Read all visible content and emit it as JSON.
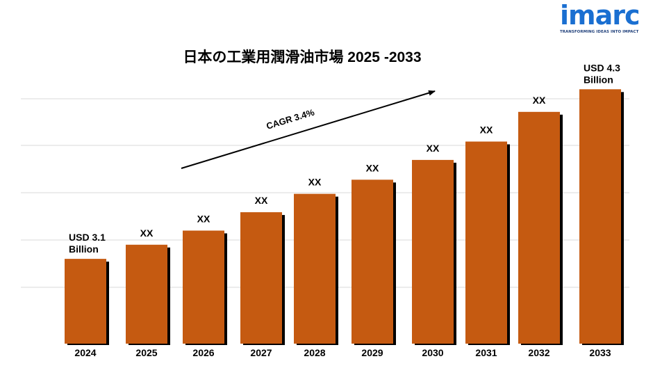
{
  "brand": {
    "logo_text": "imarc",
    "tagline": "TRANSFORMING IDEAS INTO IMPACT"
  },
  "colors": {
    "bar": "#c55a11",
    "bar_shadow": "#000000",
    "gridline": "#d9d9d9",
    "logo_blue": "#1a6fd1"
  },
  "chart_data": {
    "type": "bar",
    "title": "日本の工業用潤滑油市場 2025 -2033",
    "xlabel": "",
    "ylabel": "",
    "grid": true,
    "categories": [
      "2024",
      "2025",
      "2026",
      "2027",
      "2028",
      "2029",
      "2030",
      "2031",
      "2032",
      "2033"
    ],
    "series": [
      {
        "values": [
          3.1,
          3.2,
          3.3,
          3.43,
          3.56,
          3.66,
          3.8,
          3.93,
          4.14,
          4.3
        ],
        "labels": [
          "USD 3.1 Billion",
          "XX",
          "XX",
          "XX",
          "XX",
          "XX",
          "XX",
          "XX",
          "XX",
          "USD 4.3 Billion"
        ]
      }
    ],
    "ylim": [
      2.5,
      4.4
    ],
    "annotation": {
      "text": "CAGR 3.4%",
      "arrow": "rising"
    }
  }
}
